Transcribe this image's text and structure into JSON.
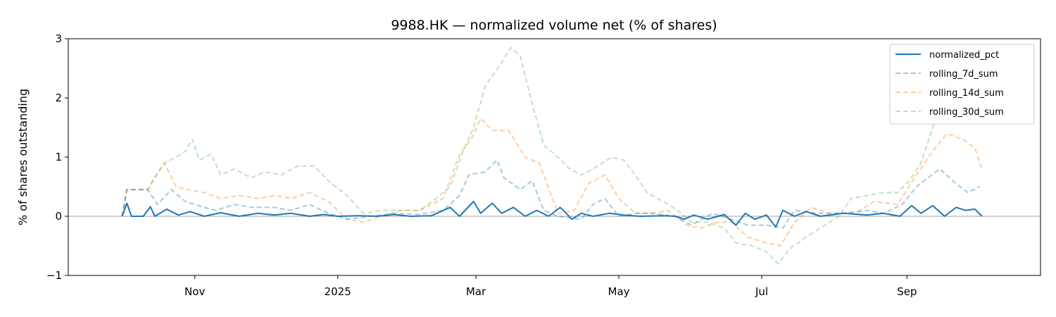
{
  "chart_data": {
    "type": "line",
    "title": "9988.HK — normalized volume net (% of shares)",
    "xlabel": "",
    "ylabel": "% of shares outstanding",
    "ylim": [
      -1,
      3
    ],
    "xlim": [
      "2024-09-08",
      "2025-10-28"
    ],
    "y_ticks": [
      {
        "value": -1,
        "label": "−1"
      },
      {
        "value": 0,
        "label": "0"
      },
      {
        "value": 1,
        "label": "1"
      },
      {
        "value": 2,
        "label": "2"
      },
      {
        "value": 3,
        "label": "3"
      }
    ],
    "x_ticks": [
      {
        "date": "2024-11-01",
        "label": "Nov"
      },
      {
        "date": "2025-01-01",
        "label": "2025"
      },
      {
        "date": "2025-03-01",
        "label": "Mar"
      },
      {
        "date": "2025-05-01",
        "label": "May"
      },
      {
        "date": "2025-07-01",
        "label": "Jul"
      },
      {
        "date": "2025-09-01",
        "label": "Sep"
      }
    ],
    "zero_line": true,
    "grid": false,
    "legend_position": "top-right",
    "series": [
      {
        "name": "normalized_pct",
        "color": "#1f77b4",
        "style": "solid",
        "opacity": 1,
        "points": [
          [
            "2024-10-01",
            0.0
          ],
          [
            "2024-10-03",
            0.22
          ],
          [
            "2024-10-05",
            0.0
          ],
          [
            "2024-10-10",
            0.0
          ],
          [
            "2024-10-13",
            0.16
          ],
          [
            "2024-10-15",
            0.0
          ],
          [
            "2024-10-20",
            0.12
          ],
          [
            "2024-10-25",
            0.02
          ],
          [
            "2024-10-30",
            0.08
          ],
          [
            "2024-11-05",
            0.0
          ],
          [
            "2024-11-12",
            0.06
          ],
          [
            "2024-11-20",
            0.0
          ],
          [
            "2024-11-28",
            0.05
          ],
          [
            "2024-12-05",
            0.02
          ],
          [
            "2024-12-12",
            0.05
          ],
          [
            "2024-12-20",
            0.0
          ],
          [
            "2024-12-26",
            0.03
          ],
          [
            "2025-01-01",
            0.0
          ],
          [
            "2025-01-10",
            0.01
          ],
          [
            "2025-01-18",
            0.0
          ],
          [
            "2025-01-25",
            0.03
          ],
          [
            "2025-02-01",
            0.0
          ],
          [
            "2025-02-10",
            0.01
          ],
          [
            "2025-02-18",
            0.15
          ],
          [
            "2025-02-22",
            0.0
          ],
          [
            "2025-02-28",
            0.25
          ],
          [
            "2025-03-03",
            0.05
          ],
          [
            "2025-03-08",
            0.22
          ],
          [
            "2025-03-12",
            0.05
          ],
          [
            "2025-03-17",
            0.15
          ],
          [
            "2025-03-22",
            0.0
          ],
          [
            "2025-03-27",
            0.1
          ],
          [
            "2025-04-01",
            0.0
          ],
          [
            "2025-04-06",
            0.15
          ],
          [
            "2025-04-11",
            -0.05
          ],
          [
            "2025-04-15",
            0.05
          ],
          [
            "2025-04-20",
            0.0
          ],
          [
            "2025-04-27",
            0.05
          ],
          [
            "2025-05-03",
            0.02
          ],
          [
            "2025-05-10",
            0.0
          ],
          [
            "2025-05-20",
            0.01
          ],
          [
            "2025-05-25",
            0.0
          ],
          [
            "2025-05-29",
            -0.05
          ],
          [
            "2025-06-02",
            0.02
          ],
          [
            "2025-06-08",
            -0.05
          ],
          [
            "2025-06-15",
            0.03
          ],
          [
            "2025-06-20",
            -0.15
          ],
          [
            "2025-06-24",
            0.05
          ],
          [
            "2025-06-28",
            -0.05
          ],
          [
            "2025-07-03",
            0.02
          ],
          [
            "2025-07-07",
            -0.18
          ],
          [
            "2025-07-10",
            0.1
          ],
          [
            "2025-07-15",
            0.0
          ],
          [
            "2025-07-20",
            0.08
          ],
          [
            "2025-07-26",
            0.0
          ],
          [
            "2025-08-05",
            0.05
          ],
          [
            "2025-08-15",
            0.02
          ],
          [
            "2025-08-22",
            0.05
          ],
          [
            "2025-08-29",
            0.0
          ],
          [
            "2025-09-03",
            0.18
          ],
          [
            "2025-09-07",
            0.05
          ],
          [
            "2025-09-12",
            0.18
          ],
          [
            "2025-09-17",
            0.0
          ],
          [
            "2025-09-22",
            0.15
          ],
          [
            "2025-09-26",
            0.1
          ],
          [
            "2025-09-30",
            0.12
          ],
          [
            "2025-10-03",
            0.0
          ]
        ]
      },
      {
        "name": "rolling_7d_sum",
        "color": "#1f77b4",
        "style": "dashed",
        "opacity": 0.4,
        "points": [
          [
            "2024-10-01",
            0.0
          ],
          [
            "2024-10-03",
            0.45
          ],
          [
            "2024-10-12",
            0.45
          ],
          [
            "2024-10-16",
            0.2
          ],
          [
            "2024-10-22",
            0.45
          ],
          [
            "2024-10-28",
            0.25
          ],
          [
            "2024-11-05",
            0.15
          ],
          [
            "2024-11-10",
            0.1
          ],
          [
            "2024-11-18",
            0.2
          ],
          [
            "2024-11-25",
            0.15
          ],
          [
            "2024-12-05",
            0.15
          ],
          [
            "2024-12-12",
            0.1
          ],
          [
            "2024-12-20",
            0.2
          ],
          [
            "2024-12-28",
            0.05
          ],
          [
            "2025-01-05",
            -0.05
          ],
          [
            "2025-01-15",
            0.0
          ],
          [
            "2025-01-25",
            0.05
          ],
          [
            "2025-02-05",
            0.03
          ],
          [
            "2025-02-15",
            0.1
          ],
          [
            "2025-02-22",
            0.35
          ],
          [
            "2025-02-26",
            0.7
          ],
          [
            "2025-03-05",
            0.75
          ],
          [
            "2025-03-10",
            0.95
          ],
          [
            "2025-03-13",
            0.65
          ],
          [
            "2025-03-20",
            0.45
          ],
          [
            "2025-03-25",
            0.6
          ],
          [
            "2025-03-30",
            0.1
          ],
          [
            "2025-04-05",
            0.0
          ],
          [
            "2025-04-15",
            -0.05
          ],
          [
            "2025-04-20",
            0.2
          ],
          [
            "2025-04-25",
            0.3
          ],
          [
            "2025-05-01",
            0.0
          ],
          [
            "2025-05-08",
            0.05
          ],
          [
            "2025-05-15",
            0.05
          ],
          [
            "2025-05-25",
            0.0
          ],
          [
            "2025-06-01",
            -0.15
          ],
          [
            "2025-06-10",
            0.05
          ],
          [
            "2025-06-18",
            -0.05
          ],
          [
            "2025-06-25",
            -0.15
          ],
          [
            "2025-07-03",
            -0.15
          ],
          [
            "2025-07-10",
            -0.2
          ],
          [
            "2025-07-15",
            0.1
          ],
          [
            "2025-07-25",
            0.05
          ],
          [
            "2025-08-05",
            0.05
          ],
          [
            "2025-08-15",
            0.1
          ],
          [
            "2025-08-22",
            0.05
          ],
          [
            "2025-08-30",
            0.2
          ],
          [
            "2025-09-05",
            0.5
          ],
          [
            "2025-09-15",
            0.8
          ],
          [
            "2025-09-22",
            0.55
          ],
          [
            "2025-09-27",
            0.4
          ],
          [
            "2025-10-02",
            0.5
          ]
        ]
      },
      {
        "name": "rolling_14d_sum",
        "color": "#ff7f0e",
        "style": "dashed",
        "opacity": 0.4,
        "points": [
          [
            "2024-10-01",
            0.0
          ],
          [
            "2024-10-03",
            0.45
          ],
          [
            "2024-10-12",
            0.45
          ],
          [
            "2024-10-14",
            0.6
          ],
          [
            "2024-10-19",
            0.9
          ],
          [
            "2024-10-24",
            0.5
          ],
          [
            "2024-10-29",
            0.45
          ],
          [
            "2024-11-05",
            0.4
          ],
          [
            "2024-11-12",
            0.3
          ],
          [
            "2024-11-20",
            0.35
          ],
          [
            "2024-11-28",
            0.3
          ],
          [
            "2024-12-05",
            0.35
          ],
          [
            "2024-12-12",
            0.3
          ],
          [
            "2024-12-20",
            0.4
          ],
          [
            "2024-12-28",
            0.25
          ],
          [
            "2025-01-05",
            -0.05
          ],
          [
            "2025-01-12",
            -0.1
          ],
          [
            "2025-01-20",
            0.0
          ],
          [
            "2025-01-28",
            0.1
          ],
          [
            "2025-02-05",
            0.1
          ],
          [
            "2025-02-15",
            0.3
          ],
          [
            "2025-02-22",
            1.05
          ],
          [
            "2025-02-27",
            1.3
          ],
          [
            "2025-03-03",
            1.65
          ],
          [
            "2025-03-08",
            1.45
          ],
          [
            "2025-03-15",
            1.45
          ],
          [
            "2025-03-22",
            1.0
          ],
          [
            "2025-03-28",
            0.9
          ],
          [
            "2025-04-05",
            0.05
          ],
          [
            "2025-04-12",
            0.1
          ],
          [
            "2025-04-18",
            0.55
          ],
          [
            "2025-04-25",
            0.7
          ],
          [
            "2025-05-01",
            0.3
          ],
          [
            "2025-05-08",
            0.05
          ],
          [
            "2025-05-15",
            0.05
          ],
          [
            "2025-05-22",
            0.1
          ],
          [
            "2025-05-30",
            -0.15
          ],
          [
            "2025-06-05",
            -0.2
          ],
          [
            "2025-06-12",
            -0.1
          ],
          [
            "2025-06-18",
            -0.1
          ],
          [
            "2025-06-25",
            -0.35
          ],
          [
            "2025-07-03",
            -0.45
          ],
          [
            "2025-07-09",
            -0.5
          ],
          [
            "2025-07-15",
            -0.1
          ],
          [
            "2025-07-22",
            0.15
          ],
          [
            "2025-07-30",
            0.05
          ],
          [
            "2025-08-10",
            0.05
          ],
          [
            "2025-08-18",
            0.25
          ],
          [
            "2025-08-28",
            0.2
          ],
          [
            "2025-09-05",
            0.7
          ],
          [
            "2025-09-12",
            1.1
          ],
          [
            "2025-09-18",
            1.4
          ],
          [
            "2025-09-25",
            1.3
          ],
          [
            "2025-09-30",
            1.15
          ],
          [
            "2025-10-03",
            0.8
          ]
        ]
      },
      {
        "name": "rolling_30d_sum",
        "color": "#2ca02c",
        "style": "dashed",
        "opacity": 0.3,
        "points": [
          [
            "2024-10-01",
            0.0
          ],
          [
            "2024-10-03",
            0.45
          ],
          [
            "2024-10-12",
            0.45
          ],
          [
            "2024-10-15",
            0.65
          ],
          [
            "2024-10-19",
            0.9
          ],
          [
            "2024-10-24",
            1.0
          ],
          [
            "2024-10-28",
            1.1
          ],
          [
            "2024-10-31",
            1.3
          ],
          [
            "2024-11-03",
            0.95
          ],
          [
            "2024-11-08",
            1.05
          ],
          [
            "2024-11-12",
            0.7
          ],
          [
            "2024-11-18",
            0.8
          ],
          [
            "2024-11-25",
            0.65
          ],
          [
            "2024-12-01",
            0.75
          ],
          [
            "2024-12-08",
            0.7
          ],
          [
            "2024-12-15",
            0.85
          ],
          [
            "2024-12-22",
            0.85
          ],
          [
            "2024-12-28",
            0.6
          ],
          [
            "2025-01-05",
            0.35
          ],
          [
            "2025-01-12",
            0.05
          ],
          [
            "2025-01-20",
            0.1
          ],
          [
            "2025-01-28",
            0.1
          ],
          [
            "2025-02-05",
            0.1
          ],
          [
            "2025-02-12",
            0.3
          ],
          [
            "2025-02-18",
            0.5
          ],
          [
            "2025-02-23",
            1.05
          ],
          [
            "2025-02-28",
            1.5
          ],
          [
            "2025-03-05",
            2.2
          ],
          [
            "2025-03-12",
            2.6
          ],
          [
            "2025-03-16",
            2.85
          ],
          [
            "2025-03-20",
            2.7
          ],
          [
            "2025-03-25",
            1.9
          ],
          [
            "2025-03-30",
            1.2
          ],
          [
            "2025-04-05",
            1.0
          ],
          [
            "2025-04-10",
            0.8
          ],
          [
            "2025-04-15",
            0.7
          ],
          [
            "2025-04-20",
            0.8
          ],
          [
            "2025-04-28",
            1.0
          ],
          [
            "2025-05-03",
            0.95
          ],
          [
            "2025-05-08",
            0.7
          ],
          [
            "2025-05-13",
            0.4
          ],
          [
            "2025-05-20",
            0.25
          ],
          [
            "2025-05-26",
            0.1
          ],
          [
            "2025-06-01",
            -0.1
          ],
          [
            "2025-06-08",
            -0.1
          ],
          [
            "2025-06-15",
            -0.2
          ],
          [
            "2025-06-20",
            -0.45
          ],
          [
            "2025-06-27",
            -0.5
          ],
          [
            "2025-07-03",
            -0.6
          ],
          [
            "2025-07-08",
            -0.8
          ],
          [
            "2025-07-13",
            -0.55
          ],
          [
            "2025-07-20",
            -0.35
          ],
          [
            "2025-07-28",
            -0.15
          ],
          [
            "2025-08-03",
            0.0
          ],
          [
            "2025-08-08",
            0.3
          ],
          [
            "2025-08-15",
            0.35
          ],
          [
            "2025-08-22",
            0.4
          ],
          [
            "2025-08-28",
            0.4
          ],
          [
            "2025-09-02",
            0.6
          ],
          [
            "2025-09-07",
            0.9
          ],
          [
            "2025-09-12",
            1.5
          ],
          [
            "2025-09-18",
            2.3
          ],
          [
            "2025-09-25",
            2.6
          ],
          [
            "2025-10-02",
            2.2
          ]
        ]
      }
    ]
  }
}
